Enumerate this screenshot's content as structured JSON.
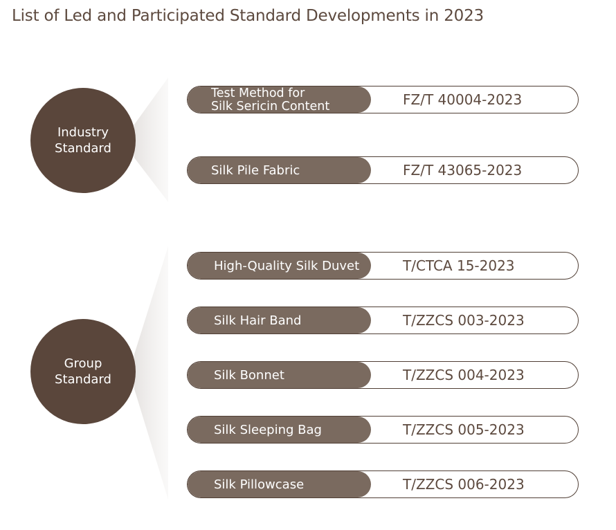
{
  "title": "List of Led and Participated Standard Developments in 2023",
  "colors": {
    "circle": "#5a463b",
    "pill_fill": "#7a6a5f",
    "border": "#4f3e34",
    "text": "#5d4a3f"
  },
  "groups": [
    {
      "label": "Industry\nStandard",
      "items": [
        {
          "name": "Test Method for\nSilk Sericin Content",
          "code": "FZ/T 40004-2023"
        },
        {
          "name": "Silk Pile Fabric",
          "code": "FZ/T 43065-2023"
        }
      ]
    },
    {
      "label": "Group\nStandard",
      "items": [
        {
          "name": "High-Quality Silk Duvet",
          "code": "T/CTCA 15-2023"
        },
        {
          "name": "Silk Hair Band",
          "code": "T/ZZCS 003-2023"
        },
        {
          "name": "Silk Bonnet",
          "code": "T/ZZCS 004-2023"
        },
        {
          "name": "Silk Sleeping Bag",
          "code": "T/ZZCS 005-2023"
        },
        {
          "name": "Silk Pillowcase",
          "code": "T/ZZCS 006-2023"
        }
      ]
    }
  ]
}
